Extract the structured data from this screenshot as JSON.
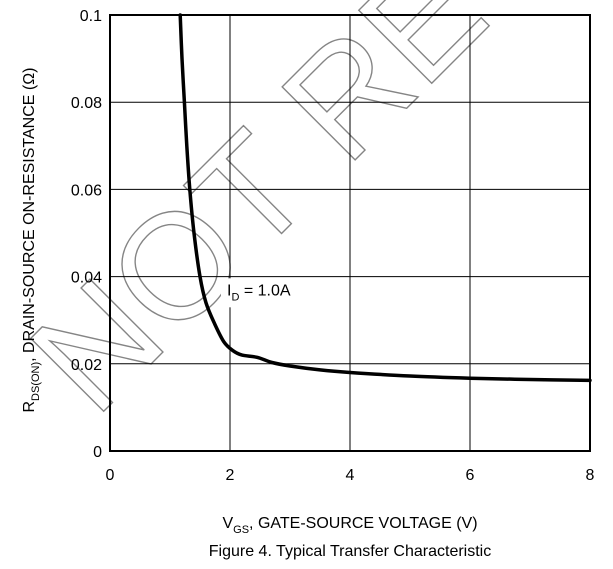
{
  "chart_data": {
    "type": "line",
    "title": "Figure 4. Typical Transfer Characteristic",
    "xlabel": {
      "main": "V",
      "sub": "GS",
      "rest": ", GATE-SOURCE VOLTAGE (V)"
    },
    "ylabel": {
      "main": "R",
      "sub": "DS(ON)",
      "rest": ", DRAIN-SOURCE ON-RESISTANCE (Ω)"
    },
    "xlim": [
      0,
      8
    ],
    "ylim": [
      0,
      0.1
    ],
    "x_ticks": [
      0,
      2,
      4,
      6,
      8
    ],
    "x_tick_labels": [
      "0",
      "2",
      "4",
      "6",
      "8"
    ],
    "y_ticks": [
      0,
      0.02,
      0.04,
      0.06,
      0.08,
      0.1
    ],
    "y_tick_labels": [
      "0",
      "0.02",
      "0.04",
      "0.06",
      "0.08",
      "0.1"
    ],
    "grid": true,
    "annotation": {
      "main": "I",
      "sub": "D",
      "rest": " = 1.0A",
      "x": 2.0,
      "y": 0.038
    },
    "series": [
      {
        "points": [
          [
            1.17,
            0.1
          ],
          [
            1.2,
            0.09
          ],
          [
            1.24,
            0.08
          ],
          [
            1.28,
            0.07
          ],
          [
            1.33,
            0.06
          ],
          [
            1.4,
            0.05
          ],
          [
            1.5,
            0.04
          ],
          [
            1.6,
            0.034
          ],
          [
            1.75,
            0.029
          ],
          [
            1.9,
            0.025
          ],
          [
            2.05,
            0.023
          ],
          [
            2.2,
            0.022
          ],
          [
            2.45,
            0.0215
          ],
          [
            2.7,
            0.0203
          ],
          [
            3.0,
            0.0195
          ],
          [
            3.5,
            0.0186
          ],
          [
            4.0,
            0.018
          ],
          [
            5.0,
            0.0172
          ],
          [
            6.0,
            0.0167
          ],
          [
            7.0,
            0.0164
          ],
          [
            8.0,
            0.0162
          ]
        ]
      }
    ]
  },
  "watermark": "NOT RECOMMENDED FOR NEW DESIGN"
}
